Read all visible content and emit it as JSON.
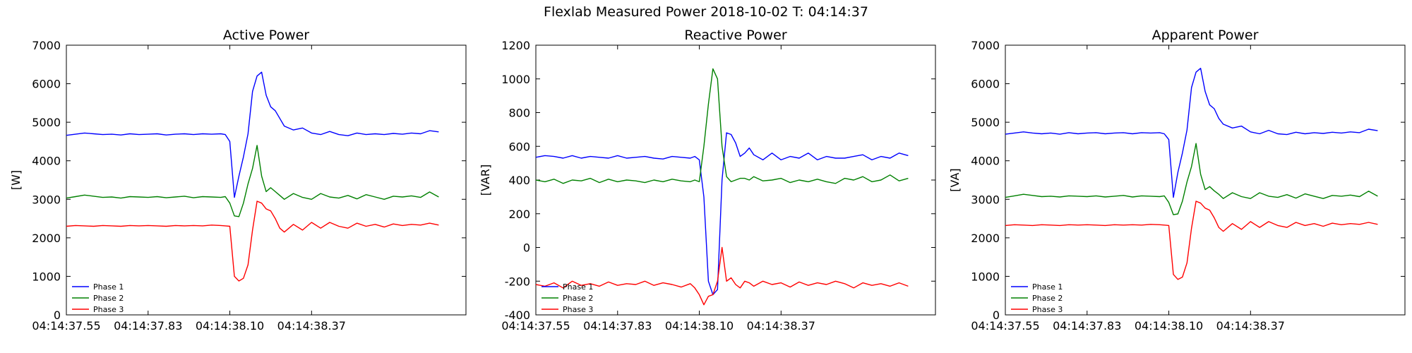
{
  "figure": {
    "title": "Flexlab Measured Power 2018-10-02 T: 04:14:37"
  },
  "chart_data": [
    {
      "type": "line",
      "title": "Active Power",
      "xlabel": "",
      "ylabel": "[W]",
      "x_tick_labels": [
        "04:14:37.55",
        "04:14:37.83",
        "04:14:38.10",
        "04:14:38.37"
      ],
      "x_ticks": [
        3,
        12,
        21,
        30
      ],
      "xlim": [
        3,
        47
      ],
      "ylim": [
        0,
        7000
      ],
      "y_ticks": [
        0,
        1000,
        2000,
        3000,
        4000,
        5000,
        6000,
        7000
      ],
      "legend": {
        "position": "bottom-left",
        "entries": [
          "Phase 1",
          "Phase 2",
          "Phase 3"
        ]
      },
      "series": [
        {
          "name": "Phase 1",
          "color": "#0000ff",
          "x": [
            3,
            4,
            5,
            6,
            7,
            8,
            9,
            10,
            11,
            12,
            13,
            14,
            15,
            16,
            17,
            18,
            19,
            20,
            20.5,
            21,
            21.5,
            22,
            22.5,
            23,
            23.5,
            24,
            24.5,
            25,
            25.5,
            26,
            26.5,
            27,
            28,
            29,
            30,
            31,
            32,
            33,
            34,
            35,
            36,
            37,
            38,
            39,
            40,
            41,
            42,
            43,
            44
          ],
          "values": [
            4660,
            4690,
            4720,
            4700,
            4680,
            4690,
            4670,
            4700,
            4680,
            4690,
            4700,
            4670,
            4690,
            4700,
            4680,
            4700,
            4690,
            4700,
            4680,
            4500,
            3050,
            3600,
            4100,
            4700,
            5800,
            6200,
            6300,
            5700,
            5400,
            5300,
            5100,
            4900,
            4800,
            4850,
            4720,
            4680,
            4760,
            4680,
            4650,
            4720,
            4680,
            4700,
            4680,
            4710,
            4690,
            4720,
            4700,
            4780,
            4750
          ]
        },
        {
          "name": "Phase 2",
          "color": "#008000",
          "x": [
            3,
            4,
            5,
            6,
            7,
            8,
            9,
            10,
            11,
            12,
            13,
            14,
            15,
            16,
            17,
            18,
            19,
            20,
            20.5,
            21,
            21.5,
            22,
            22.5,
            23,
            23.5,
            24,
            24.5,
            25,
            25.5,
            26,
            26.5,
            27,
            28,
            29,
            30,
            31,
            32,
            33,
            34,
            35,
            36,
            37,
            38,
            39,
            40,
            41,
            42,
            43,
            44
          ],
          "values": [
            3030,
            3070,
            3110,
            3080,
            3050,
            3060,
            3030,
            3070,
            3060,
            3050,
            3070,
            3040,
            3060,
            3080,
            3040,
            3070,
            3060,
            3050,
            3070,
            2900,
            2570,
            2550,
            2900,
            3400,
            3800,
            4400,
            3600,
            3200,
            3300,
            3200,
            3100,
            3000,
            3150,
            3050,
            3000,
            3150,
            3060,
            3030,
            3100,
            3010,
            3120,
            3060,
            3000,
            3080,
            3060,
            3090,
            3050,
            3190,
            3060
          ]
        },
        {
          "name": "Phase 3",
          "color": "#ff0000",
          "x": [
            3,
            4,
            5,
            6,
            7,
            8,
            9,
            10,
            11,
            12,
            13,
            14,
            15,
            16,
            17,
            18,
            19,
            20,
            20.5,
            21,
            21.5,
            22,
            22.5,
            23,
            23.5,
            24,
            24.5,
            25,
            25.5,
            26,
            26.5,
            27,
            28,
            29,
            30,
            31,
            32,
            33,
            34,
            35,
            36,
            37,
            38,
            39,
            40,
            41,
            42,
            43,
            44
          ],
          "values": [
            2300,
            2320,
            2310,
            2300,
            2320,
            2310,
            2300,
            2320,
            2310,
            2320,
            2310,
            2300,
            2320,
            2310,
            2320,
            2310,
            2330,
            2320,
            2310,
            2300,
            1000,
            880,
            950,
            1300,
            2200,
            2950,
            2900,
            2750,
            2700,
            2500,
            2250,
            2150,
            2350,
            2200,
            2400,
            2250,
            2400,
            2300,
            2250,
            2380,
            2300,
            2350,
            2280,
            2360,
            2320,
            2350,
            2330,
            2380,
            2330
          ]
        }
      ]
    },
    {
      "type": "line",
      "title": "Reactive Power",
      "xlabel": "",
      "ylabel": "[VAR]",
      "x_tick_labels": [
        "04:14:37.55",
        "04:14:37.83",
        "04:14:38.10",
        "04:14:38.37"
      ],
      "x_ticks": [
        3,
        12,
        21,
        30
      ],
      "xlim": [
        3,
        47
      ],
      "ylim": [
        -400,
        1200
      ],
      "y_ticks": [
        -400,
        -200,
        0,
        200,
        400,
        600,
        800,
        1000,
        1200
      ],
      "legend": {
        "position": "bottom-left",
        "entries": [
          "Phase 1",
          "Phase 2",
          "Phase 3"
        ]
      },
      "series": [
        {
          "name": "Phase 1",
          "color": "#0000ff",
          "x": [
            3,
            4,
            5,
            6,
            7,
            8,
            9,
            10,
            11,
            12,
            13,
            14,
            15,
            16,
            17,
            18,
            19,
            20,
            20.5,
            21,
            21.5,
            22,
            22.5,
            23,
            23.5,
            24,
            24.5,
            25,
            25.5,
            26,
            26.5,
            27,
            28,
            29,
            30,
            31,
            32,
            33,
            34,
            35,
            36,
            37,
            38,
            39,
            40,
            41,
            42,
            43,
            44
          ],
          "values": [
            535,
            545,
            540,
            530,
            545,
            530,
            540,
            535,
            530,
            545,
            530,
            535,
            540,
            530,
            525,
            540,
            535,
            530,
            540,
            520,
            300,
            -200,
            -280,
            -250,
            400,
            680,
            670,
            620,
            540,
            560,
            590,
            550,
            520,
            560,
            520,
            540,
            530,
            560,
            520,
            540,
            530,
            530,
            540,
            550,
            520,
            540,
            530,
            560,
            545
          ]
        },
        {
          "name": "Phase 2",
          "color": "#008000",
          "x": [
            3,
            4,
            5,
            6,
            7,
            8,
            9,
            10,
            11,
            12,
            13,
            14,
            15,
            16,
            17,
            18,
            19,
            20,
            20.5,
            21,
            21.5,
            22,
            22.5,
            23,
            23.5,
            24,
            24.5,
            25,
            25.5,
            26,
            26.5,
            27,
            28,
            29,
            30,
            31,
            32,
            33,
            34,
            35,
            36,
            37,
            38,
            39,
            40,
            41,
            42,
            43,
            44
          ],
          "values": [
            400,
            390,
            405,
            380,
            400,
            395,
            410,
            385,
            405,
            390,
            400,
            395,
            385,
            400,
            390,
            405,
            395,
            390,
            400,
            390,
            600,
            850,
            1060,
            1000,
            600,
            420,
            390,
            400,
            410,
            410,
            400,
            420,
            395,
            400,
            410,
            385,
            400,
            390,
            405,
            390,
            380,
            410,
            400,
            420,
            390,
            400,
            430,
            395,
            410
          ]
        },
        {
          "name": "Phase 3",
          "color": "#ff0000",
          "x": [
            3,
            4,
            5,
            6,
            7,
            8,
            9,
            10,
            11,
            12,
            13,
            14,
            15,
            16,
            17,
            18,
            19,
            20,
            20.5,
            21,
            21.5,
            22,
            22.5,
            23,
            23.5,
            24,
            24.5,
            25,
            25.5,
            26,
            26.5,
            27,
            28,
            29,
            30,
            31,
            32,
            33,
            34,
            35,
            36,
            37,
            38,
            39,
            40,
            41,
            42,
            43,
            44
          ],
          "values": [
            -220,
            -230,
            -210,
            -240,
            -200,
            -225,
            -215,
            -230,
            -205,
            -225,
            -215,
            -220,
            -200,
            -225,
            -210,
            -220,
            -235,
            -215,
            -240,
            -280,
            -340,
            -290,
            -280,
            -200,
            0,
            -200,
            -180,
            -220,
            -240,
            -200,
            -210,
            -230,
            -200,
            -220,
            -210,
            -235,
            -205,
            -225,
            -210,
            -220,
            -200,
            -215,
            -240,
            -210,
            -225,
            -215,
            -230,
            -210,
            -230
          ]
        }
      ]
    },
    {
      "type": "line",
      "title": "Apparent Power",
      "xlabel": "",
      "ylabel": "[VA]",
      "x_tick_labels": [
        "04:14:37.55",
        "04:14:37.83",
        "04:14:38.10",
        "04:14:38.37"
      ],
      "x_ticks": [
        3,
        12,
        21,
        30
      ],
      "xlim": [
        3,
        47
      ],
      "ylim": [
        0,
        7000
      ],
      "y_ticks": [
        0,
        1000,
        2000,
        3000,
        4000,
        5000,
        6000,
        7000
      ],
      "legend": {
        "position": "bottom-left",
        "entries": [
          "Phase 1",
          "Phase 2",
          "Phase 3"
        ]
      },
      "series": [
        {
          "name": "Phase 1",
          "color": "#0000ff",
          "x": [
            3,
            4,
            5,
            6,
            7,
            8,
            9,
            10,
            11,
            12,
            13,
            14,
            15,
            16,
            17,
            18,
            19,
            20,
            20.5,
            21,
            21.5,
            22,
            22.5,
            23,
            23.5,
            24,
            24.5,
            25,
            25.5,
            26,
            26.5,
            27,
            28,
            29,
            30,
            31,
            32,
            33,
            34,
            35,
            36,
            37,
            38,
            39,
            40,
            41,
            42,
            43,
            44
          ],
          "values": [
            4690,
            4720,
            4750,
            4720,
            4700,
            4720,
            4690,
            4730,
            4700,
            4720,
            4730,
            4700,
            4720,
            4730,
            4700,
            4730,
            4720,
            4730,
            4700,
            4550,
            3050,
            3700,
            4200,
            4800,
            5900,
            6300,
            6400,
            5800,
            5450,
            5350,
            5100,
            4950,
            4850,
            4900,
            4750,
            4700,
            4790,
            4700,
            4680,
            4740,
            4700,
            4730,
            4710,
            4740,
            4720,
            4750,
            4730,
            4820,
            4780
          ]
        },
        {
          "name": "Phase 2",
          "color": "#008000",
          "x": [
            3,
            4,
            5,
            6,
            7,
            8,
            9,
            10,
            11,
            12,
            13,
            14,
            15,
            16,
            17,
            18,
            19,
            20,
            20.5,
            21,
            21.5,
            22,
            22.5,
            23,
            23.5,
            24,
            24.5,
            25,
            25.5,
            26,
            26.5,
            27,
            28,
            29,
            30,
            31,
            32,
            33,
            34,
            35,
            36,
            37,
            38,
            39,
            40,
            41,
            42,
            43,
            44
          ],
          "values": [
            3050,
            3090,
            3130,
            3100,
            3070,
            3080,
            3060,
            3090,
            3080,
            3070,
            3090,
            3060,
            3080,
            3100,
            3060,
            3090,
            3080,
            3070,
            3090,
            2920,
            2600,
            2620,
            2950,
            3450,
            3850,
            4450,
            3650,
            3250,
            3330,
            3220,
            3130,
            3020,
            3170,
            3070,
            3020,
            3170,
            3080,
            3050,
            3120,
            3030,
            3140,
            3080,
            3020,
            3100,
            3080,
            3110,
            3070,
            3210,
            3080
          ]
        },
        {
          "name": "Phase 3",
          "color": "#ff0000",
          "x": [
            3,
            4,
            5,
            6,
            7,
            8,
            9,
            10,
            11,
            12,
            13,
            14,
            15,
            16,
            17,
            18,
            19,
            20,
            20.5,
            21,
            21.5,
            22,
            22.5,
            23,
            23.5,
            24,
            24.5,
            25,
            25.5,
            26,
            26.5,
            27,
            28,
            29,
            30,
            31,
            32,
            33,
            34,
            35,
            36,
            37,
            38,
            39,
            40,
            41,
            42,
            43,
            44
          ],
          "values": [
            2320,
            2340,
            2330,
            2320,
            2340,
            2330,
            2320,
            2340,
            2330,
            2340,
            2330,
            2320,
            2340,
            2330,
            2340,
            2330,
            2350,
            2340,
            2330,
            2320,
            1050,
            920,
            980,
            1350,
            2250,
            2950,
            2900,
            2770,
            2720,
            2520,
            2270,
            2170,
            2370,
            2220,
            2420,
            2270,
            2420,
            2320,
            2270,
            2400,
            2320,
            2370,
            2300,
            2380,
            2340,
            2370,
            2350,
            2400,
            2350
          ]
        }
      ]
    }
  ]
}
